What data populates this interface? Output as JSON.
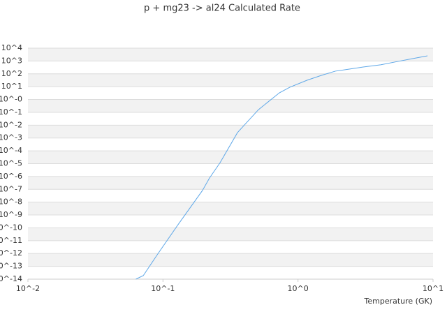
{
  "chart_data": {
    "type": "line",
    "title": "p + mg23 -> al24 Calculated Rate",
    "x_label": "Temperature (GK)",
    "xscale": "log",
    "yscale": "log",
    "grid": true,
    "color": "#5fa8e8",
    "xlim": [
      0.01,
      10
    ],
    "xticks": [
      {
        "value": 0.01,
        "label": "10^-2"
      },
      {
        "value": 0.1,
        "label": "10^-1"
      },
      {
        "value": 1,
        "label": "10^0"
      },
      {
        "value": 10,
        "label": "10^1"
      }
    ],
    "ylim": [
      1e-14,
      10000
    ],
    "yticks": [
      {
        "value": 10000,
        "label": "10^4"
      },
      {
        "value": 1000,
        "label": "10^3"
      },
      {
        "value": 100,
        "label": "10^2"
      },
      {
        "value": 10,
        "label": "10^1"
      },
      {
        "value": 1,
        "label": "10^-0"
      },
      {
        "value": 0.1,
        "label": "10^-1"
      },
      {
        "value": 0.01,
        "label": "10^-2"
      },
      {
        "value": 0.001,
        "label": "10^-3"
      },
      {
        "value": 0.0001,
        "label": "10^-4"
      },
      {
        "value": 1e-05,
        "label": "10^-5"
      },
      {
        "value": 1e-06,
        "label": "10^-6"
      },
      {
        "value": 1e-07,
        "label": "10^-7"
      },
      {
        "value": 1e-08,
        "label": "10^-8"
      },
      {
        "value": 1e-09,
        "label": "10^-9"
      },
      {
        "value": 1e-10,
        "label": "10^-10"
      },
      {
        "value": 1e-11,
        "label": "10^-11"
      },
      {
        "value": 1e-12,
        "label": "10^-12"
      },
      {
        "value": 1e-13,
        "label": "10^-13"
      },
      {
        "value": 1e-14,
        "label": "10^-14"
      }
    ],
    "x": [
      0.063,
      0.0715,
      0.0906,
      0.129,
      0.196,
      0.221,
      0.265,
      0.356,
      0.509,
      0.728,
      0.871,
      1.17,
      1.49,
      1.89,
      2.4,
      3.04,
      4.09,
      5.52,
      7.0,
      9.1
    ],
    "values": [
      1e-14,
      1.9e-14,
      7.9e-13,
      1.7e-10,
      8.1e-08,
      7.6e-07,
      1.2e-05,
      0.0026,
      0.16,
      3.3,
      9.1,
      32,
      76,
      162,
      234,
      339,
      501,
      933,
      1510,
      2510
    ]
  }
}
